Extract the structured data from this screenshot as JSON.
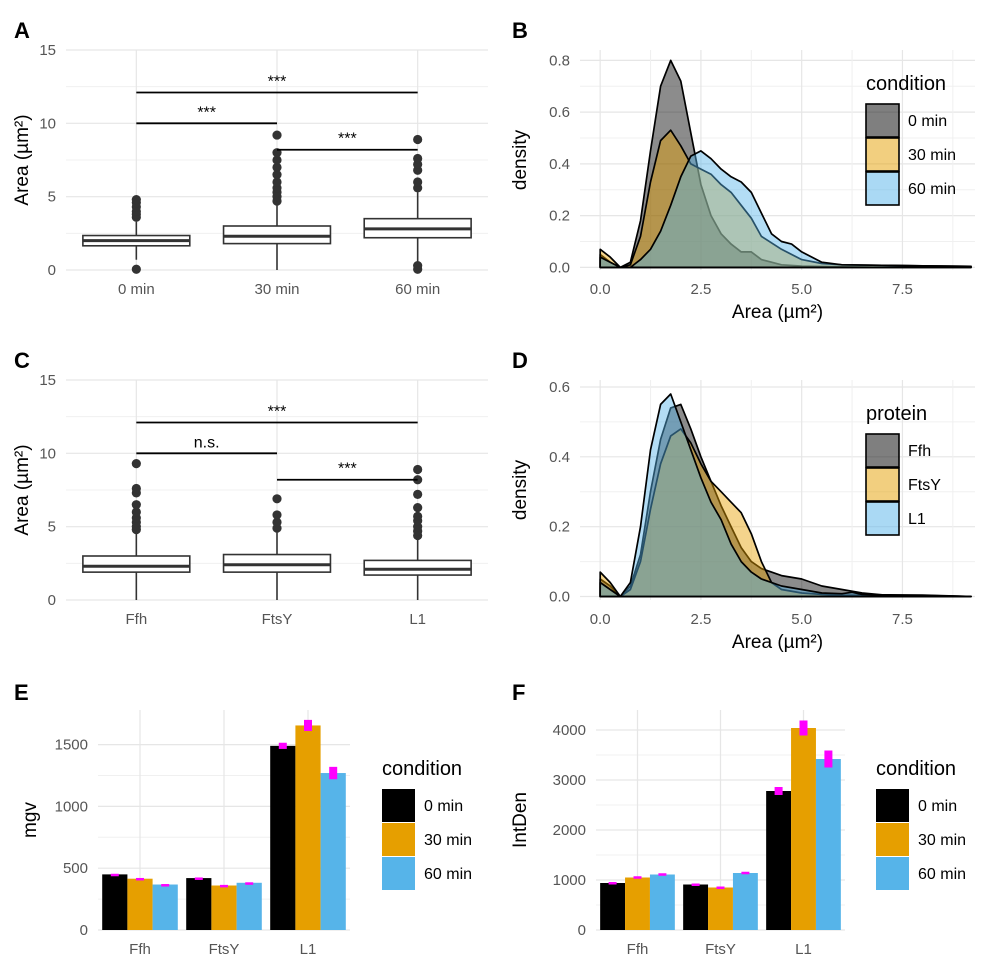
{
  "chart_data": [
    {
      "panel_label": "A",
      "type": "boxplot",
      "categories": [
        "0 min",
        "30 min",
        "60 min"
      ],
      "ylabel": "Area (µm²)",
      "ylim": [
        0,
        15
      ],
      "yticks": [
        0,
        5,
        10,
        15
      ],
      "boxes": [
        {
          "q1": 1.65,
          "median": 2.0,
          "q3": 2.35,
          "whisker_low": 0.7,
          "whisker_high": 3.3,
          "outliers": [
            0.05,
            3.6,
            3.8,
            4.0,
            4.3,
            4.6,
            4.8
          ]
        },
        {
          "q1": 1.8,
          "median": 2.3,
          "q3": 3.0,
          "whisker_low": 0.0,
          "whisker_high": 4.5,
          "outliers": [
            4.7,
            5.0,
            5.3,
            5.6,
            6.0,
            6.5,
            7.0,
            7.5,
            8.0,
            9.2
          ]
        },
        {
          "q1": 2.2,
          "median": 2.8,
          "q3": 3.5,
          "whisker_low": 0.3,
          "whisker_high": 5.3,
          "outliers": [
            0.05,
            0.3,
            5.6,
            6.0,
            6.8,
            7.2,
            7.6,
            8.9
          ]
        }
      ],
      "brackets": [
        {
          "from": 0,
          "to": 1,
          "y": 10.0,
          "label": "***"
        },
        {
          "from": 1,
          "to": 2,
          "y": 8.2,
          "label": "***"
        },
        {
          "from": 0,
          "to": 2,
          "y": 12.1,
          "label": "***"
        }
      ]
    },
    {
      "panel_label": "B",
      "type": "area",
      "xlabel": "Area (µm²)",
      "ylabel": "density",
      "xlim": [
        -0.5,
        9.3
      ],
      "ylim": [
        -0.01,
        0.84
      ],
      "xticks": [
        0.0,
        2.5,
        5.0,
        7.5
      ],
      "xtick_labels": [
        "0.0",
        "2.5",
        "5.0",
        "7.5"
      ],
      "yticks": [
        0.0,
        0.2,
        0.4,
        0.6,
        0.8
      ],
      "ytick_labels": [
        "0.0",
        "0.2",
        "0.4",
        "0.6",
        "0.8"
      ],
      "legend_title": "condition",
      "legend_position": "right",
      "series": [
        {
          "name": "0 min",
          "color": "#000000",
          "x": [
            0,
            0.25,
            0.5,
            0.75,
            1.0,
            1.25,
            1.5,
            1.75,
            2.0,
            2.25,
            2.5,
            2.75,
            3.0,
            3.25,
            3.5,
            3.75,
            4.0,
            4.25,
            4.5,
            5.0,
            6.0,
            7.0,
            8.0,
            9.2
          ],
          "y": [
            0.05,
            0.02,
            0.0,
            0.02,
            0.18,
            0.45,
            0.7,
            0.8,
            0.72,
            0.52,
            0.32,
            0.2,
            0.13,
            0.09,
            0.06,
            0.06,
            0.03,
            0.02,
            0.01,
            0.005,
            0.002,
            0.001,
            0.001,
            0.0
          ]
        },
        {
          "name": "30 min",
          "color": "#E69F00",
          "x": [
            0,
            0.25,
            0.5,
            0.75,
            1.0,
            1.25,
            1.5,
            1.75,
            2.0,
            2.25,
            2.5,
            2.75,
            3.0,
            3.25,
            3.5,
            3.75,
            4.0,
            4.5,
            5.0,
            5.5,
            6.0,
            7.0,
            8.0,
            9.2
          ],
          "y": [
            0.07,
            0.04,
            0.0,
            0.01,
            0.12,
            0.33,
            0.49,
            0.53,
            0.47,
            0.4,
            0.38,
            0.36,
            0.32,
            0.29,
            0.24,
            0.19,
            0.12,
            0.07,
            0.03,
            0.015,
            0.01,
            0.008,
            0.006,
            0.004
          ]
        },
        {
          "name": "60 min",
          "color": "#56B4E9",
          "x": [
            0,
            0.25,
            0.5,
            0.75,
            1.0,
            1.25,
            1.5,
            1.75,
            2.0,
            2.25,
            2.5,
            2.75,
            3.0,
            3.25,
            3.5,
            3.75,
            4.0,
            4.25,
            4.5,
            4.75,
            5.0,
            5.5,
            6.0,
            7.0,
            8.0,
            9.2
          ],
          "y": [
            0.04,
            0.02,
            0.0,
            0.0,
            0.03,
            0.07,
            0.14,
            0.24,
            0.35,
            0.43,
            0.45,
            0.42,
            0.38,
            0.35,
            0.33,
            0.29,
            0.21,
            0.13,
            0.1,
            0.09,
            0.06,
            0.02,
            0.01,
            0.008,
            0.006,
            0.004
          ]
        }
      ]
    },
    {
      "panel_label": "C",
      "type": "boxplot",
      "categories": [
        "Ffh",
        "FtsY",
        "L1"
      ],
      "ylabel": "Area (µm²)",
      "ylim": [
        0,
        15
      ],
      "yticks": [
        0,
        5,
        10,
        15
      ],
      "boxes": [
        {
          "q1": 1.9,
          "median": 2.3,
          "q3": 3.0,
          "whisker_low": 0.0,
          "whisker_high": 4.6,
          "outliers": [
            4.8,
            5.0,
            5.3,
            5.6,
            6.0,
            6.5,
            7.3,
            7.6,
            9.3
          ]
        },
        {
          "q1": 1.9,
          "median": 2.4,
          "q3": 3.1,
          "whisker_low": 0.0,
          "whisker_high": 4.6,
          "outliers": [
            4.9,
            5.3,
            5.8,
            6.9
          ]
        },
        {
          "q1": 1.7,
          "median": 2.1,
          "q3": 2.7,
          "whisker_low": 0.0,
          "whisker_high": 4.2,
          "outliers": [
            4.4,
            4.7,
            5.0,
            5.4,
            5.7,
            6.3,
            7.2,
            8.2,
            8.9
          ]
        }
      ],
      "brackets": [
        {
          "from": 0,
          "to": 1,
          "y": 10.0,
          "label": "n.s."
        },
        {
          "from": 1,
          "to": 2,
          "y": 8.2,
          "label": "***"
        },
        {
          "from": 0,
          "to": 2,
          "y": 12.1,
          "label": "***"
        }
      ]
    },
    {
      "panel_label": "D",
      "type": "area",
      "xlabel": "Area (µm²)",
      "ylabel": "density",
      "xlim": [
        -0.5,
        9.3
      ],
      "ylim": [
        -0.01,
        0.62
      ],
      "xticks": [
        0.0,
        2.5,
        5.0,
        7.5
      ],
      "xtick_labels": [
        "0.0",
        "2.5",
        "5.0",
        "7.5"
      ],
      "yticks": [
        0.0,
        0.2,
        0.4,
        0.6
      ],
      "ytick_labels": [
        "0.0",
        "0.2",
        "0.4",
        "0.6"
      ],
      "legend_title": "protein",
      "legend_position": "right",
      "series": [
        {
          "name": "Ffh",
          "color": "#000000",
          "x": [
            0,
            0.25,
            0.5,
            0.75,
            1.0,
            1.25,
            1.5,
            1.75,
            2.0,
            2.25,
            2.5,
            2.75,
            3.0,
            3.25,
            3.5,
            3.75,
            4.0,
            4.25,
            4.5,
            5.0,
            5.5,
            6.0,
            6.5,
            7.0,
            8.0,
            9.2
          ],
          "y": [
            0.05,
            0.03,
            0.0,
            0.03,
            0.12,
            0.3,
            0.45,
            0.54,
            0.55,
            0.48,
            0.4,
            0.33,
            0.26,
            0.2,
            0.14,
            0.1,
            0.08,
            0.07,
            0.06,
            0.05,
            0.03,
            0.02,
            0.01,
            0.005,
            0.004,
            0.0
          ]
        },
        {
          "name": "FtsY",
          "color": "#E69F00",
          "x": [
            0,
            0.25,
            0.5,
            0.75,
            1.0,
            1.25,
            1.5,
            1.75,
            2.0,
            2.25,
            2.5,
            2.75,
            3.0,
            3.25,
            3.5,
            3.75,
            4.0,
            4.25,
            4.5,
            5.0,
            5.5,
            6.0,
            7.0,
            8.0,
            9.2
          ],
          "y": [
            0.07,
            0.04,
            0.0,
            0.02,
            0.1,
            0.25,
            0.38,
            0.46,
            0.48,
            0.44,
            0.38,
            0.33,
            0.3,
            0.27,
            0.24,
            0.18,
            0.1,
            0.04,
            0.02,
            0.01,
            0.006,
            0.004,
            0.003,
            0.002,
            0.0
          ]
        },
        {
          "name": "L1",
          "color": "#56B4E9",
          "x": [
            0,
            0.25,
            0.5,
            0.75,
            1.0,
            1.25,
            1.5,
            1.75,
            2.0,
            2.25,
            2.5,
            2.75,
            3.0,
            3.25,
            3.5,
            3.75,
            4.0,
            4.5,
            5.0,
            5.5,
            6.0,
            6.25,
            6.5,
            7.0,
            8.0,
            9.2
          ],
          "y": [
            0.04,
            0.02,
            0.0,
            0.04,
            0.2,
            0.42,
            0.55,
            0.58,
            0.5,
            0.42,
            0.34,
            0.27,
            0.22,
            0.15,
            0.1,
            0.07,
            0.05,
            0.03,
            0.02,
            0.01,
            0.008,
            0.012,
            0.006,
            0.004,
            0.003,
            0.0
          ]
        }
      ]
    },
    {
      "panel_label": "E",
      "type": "bar",
      "categories": [
        "Ffh",
        "FtsY",
        "L1"
      ],
      "ylabel": "mgv",
      "ylim": [
        0,
        1780
      ],
      "yticks": [
        0,
        500,
        1000,
        1500
      ],
      "legend_title": "condition",
      "legend_position": "right",
      "series": [
        {
          "name": "0 min",
          "color": "#000000",
          "values": [
            450,
            420,
            1490
          ],
          "errors": [
            5,
            5,
            25
          ]
        },
        {
          "name": "30 min",
          "color": "#E69F00",
          "values": [
            415,
            360,
            1655
          ],
          "errors": [
            6,
            5,
            45
          ]
        },
        {
          "name": "60 min",
          "color": "#56B4E9",
          "values": [
            368,
            382,
            1270
          ],
          "errors": [
            4,
            4,
            50
          ]
        }
      ],
      "error_color": "#FF00FF"
    },
    {
      "panel_label": "F",
      "type": "bar",
      "categories": [
        "Ffh",
        "FtsY",
        "L1"
      ],
      "ylabel": "IntDen",
      "ylim": [
        0,
        4400
      ],
      "yticks": [
        0,
        1000,
        2000,
        3000,
        4000
      ],
      "legend_title": "condition",
      "legend_position": "right",
      "series": [
        {
          "name": "0 min",
          "color": "#000000",
          "values": [
            940,
            910,
            2780
          ],
          "errors": [
            20,
            20,
            80
          ]
        },
        {
          "name": "30 min",
          "color": "#E69F00",
          "values": [
            1050,
            850,
            4040
          ],
          "errors": [
            25,
            20,
            150
          ]
        },
        {
          "name": "60 min",
          "color": "#56B4E9",
          "values": [
            1110,
            1140,
            3420
          ],
          "errors": [
            25,
            25,
            170
          ]
        }
      ],
      "error_color": "#FF00FF"
    }
  ]
}
